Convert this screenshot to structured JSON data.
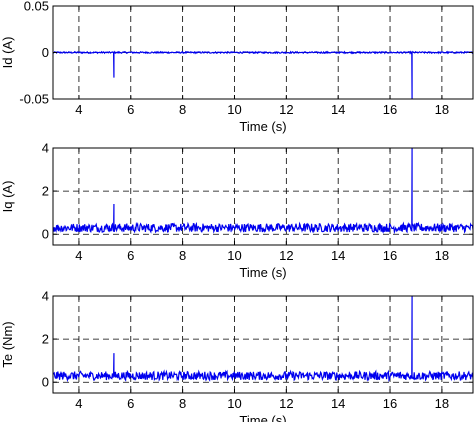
{
  "chart_data": [
    {
      "type": "line",
      "ylabel": "Id (A)",
      "xlabel": "Time (s)",
      "xlim": [
        3,
        19.2
      ],
      "ylim": [
        -0.05,
        0.05
      ],
      "xticks": [
        4,
        6,
        8,
        10,
        12,
        14,
        16,
        18
      ],
      "yticks": [
        -0.05,
        0,
        0.05
      ],
      "ytick_labels": [
        "-0.05",
        "0",
        "0.05"
      ],
      "grid": true,
      "grid_style": "dashed",
      "series": [
        {
          "color": "#0000ee",
          "baseline": 0,
          "noise": 0.0008,
          "events": [
            {
              "x": 5.35,
              "y": -0.027
            },
            {
              "x": 16.85,
              "y": -0.05
            }
          ]
        }
      ]
    },
    {
      "type": "line",
      "ylabel": "Iq (A)",
      "xlabel": "Time (s)",
      "xlim": [
        3,
        19.2
      ],
      "ylim": [
        -0.5,
        4
      ],
      "xticks": [
        4,
        6,
        8,
        10,
        12,
        14,
        16,
        18
      ],
      "yticks": [
        0,
        2,
        4
      ],
      "ytick_labels": [
        "0",
        "2",
        "4"
      ],
      "grid": true,
      "grid_style": "dashed",
      "series": [
        {
          "color": "#0000ee",
          "baseline": 0.3,
          "noise": 0.2,
          "events": [
            {
              "x": 5.35,
              "y": 1.4
            },
            {
              "x": 16.85,
              "y": 4.0
            }
          ]
        }
      ]
    },
    {
      "type": "line",
      "ylabel": "Te (Nm)",
      "xlabel": "Time (s)",
      "xlim": [
        3,
        19.2
      ],
      "ylim": [
        -0.5,
        4
      ],
      "xticks": [
        4,
        6,
        8,
        10,
        12,
        14,
        16,
        18
      ],
      "yticks": [
        0,
        2,
        4
      ],
      "ytick_labels": [
        "0",
        "2",
        "4"
      ],
      "grid": true,
      "grid_style": "dashed",
      "series": [
        {
          "color": "#0000ee",
          "baseline": 0.3,
          "noise": 0.2,
          "events": [
            {
              "x": 5.35,
              "y": 1.35
            },
            {
              "x": 16.85,
              "y": 4.0
            }
          ]
        }
      ]
    }
  ]
}
